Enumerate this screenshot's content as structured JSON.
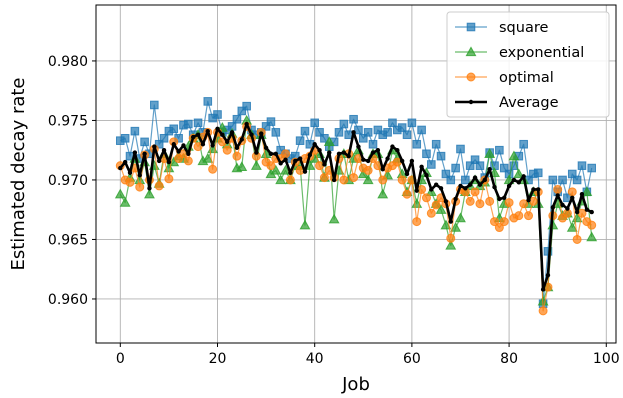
{
  "chart_data": {
    "type": "line",
    "title": "",
    "xlabel": "Job",
    "ylabel": "Estimated decay rate",
    "xlim": [
      -5,
      102
    ],
    "ylim": [
      0.9563,
      0.9847
    ],
    "xticks": [
      0,
      20,
      40,
      60,
      80,
      100
    ],
    "yticks": [
      0.96,
      0.965,
      0.97,
      0.975,
      0.98
    ],
    "ytick_labels": [
      "0.960",
      "0.965",
      "0.970",
      "0.975",
      "0.980"
    ],
    "grid": true,
    "legend_position": "top-right",
    "x": [
      0,
      1,
      2,
      3,
      4,
      5,
      6,
      7,
      8,
      9,
      10,
      11,
      12,
      13,
      14,
      15,
      16,
      17,
      18,
      19,
      20,
      21,
      22,
      23,
      24,
      25,
      26,
      27,
      28,
      29,
      30,
      31,
      32,
      33,
      34,
      35,
      36,
      37,
      38,
      39,
      40,
      41,
      42,
      43,
      44,
      45,
      46,
      47,
      48,
      49,
      50,
      51,
      52,
      53,
      54,
      55,
      56,
      57,
      58,
      59,
      60,
      61,
      62,
      63,
      64,
      65,
      66,
      67,
      68,
      69,
      70,
      71,
      72,
      73,
      74,
      75,
      76,
      77,
      78,
      79,
      80,
      81,
      82,
      83,
      84,
      85,
      86,
      87,
      88,
      89,
      90,
      91,
      92,
      93,
      94,
      95,
      96,
      97
    ],
    "series": [
      {
        "name": "square",
        "color": "#1f77b4",
        "marker": "square",
        "values": [
          0.9733,
          0.9735,
          0.972,
          0.9741,
          0.9718,
          0.9732,
          0.9722,
          0.9763,
          0.973,
          0.9735,
          0.9741,
          0.9743,
          0.9735,
          0.9746,
          0.9747,
          0.9738,
          0.9748,
          0.974,
          0.9766,
          0.9752,
          0.9755,
          0.974,
          0.9742,
          0.9745,
          0.9751,
          0.9758,
          0.9762,
          0.9742,
          0.9738,
          0.974,
          0.9745,
          0.9749,
          0.974,
          0.9725,
          0.9722,
          0.9718,
          0.972,
          0.9733,
          0.9741,
          0.973,
          0.9748,
          0.974,
          0.9735,
          0.9728,
          0.9732,
          0.974,
          0.9747,
          0.9738,
          0.9751,
          0.9742,
          0.9735,
          0.974,
          0.973,
          0.9742,
          0.9738,
          0.974,
          0.9748,
          0.9742,
          0.9744,
          0.9738,
          0.9748,
          0.973,
          0.9742,
          0.9722,
          0.9713,
          0.973,
          0.972,
          0.9705,
          0.97,
          0.971,
          0.9726,
          0.97,
          0.9712,
          0.9717,
          0.9712,
          0.9702,
          0.9723,
          0.9712,
          0.9725,
          0.971,
          0.9705,
          0.9712,
          0.972,
          0.973,
          0.97,
          0.9705,
          0.9706,
          0.9596,
          0.964,
          0.97,
          0.969,
          0.97,
          0.9685,
          0.9705,
          0.97,
          0.9712,
          0.969,
          0.971
        ]
      },
      {
        "name": "exponential",
        "color": "#2ca02c",
        "marker": "triangle",
        "values": [
          0.9688,
          0.9681,
          0.9702,
          0.9718,
          0.97,
          0.9715,
          0.9688,
          0.9712,
          0.9697,
          0.9722,
          0.971,
          0.9715,
          0.972,
          0.9718,
          0.9728,
          0.9735,
          0.9738,
          0.9716,
          0.9718,
          0.9726,
          0.9735,
          0.9744,
          0.973,
          0.9739,
          0.971,
          0.9711,
          0.975,
          0.9738,
          0.9712,
          0.9738,
          0.9722,
          0.9705,
          0.9708,
          0.97,
          0.9708,
          0.97,
          0.9712,
          0.9712,
          0.9662,
          0.9712,
          0.9718,
          0.9722,
          0.9702,
          0.9732,
          0.9667,
          0.9708,
          0.9722,
          0.97,
          0.9718,
          0.9725,
          0.9705,
          0.97,
          0.9722,
          0.9722,
          0.9688,
          0.9704,
          0.9725,
          0.9718,
          0.9705,
          0.969,
          0.97,
          0.968,
          0.97,
          0.9706,
          0.969,
          0.968,
          0.9675,
          0.9662,
          0.9645,
          0.966,
          0.9668,
          0.969,
          0.9695,
          0.97,
          0.9695,
          0.9698,
          0.9722,
          0.9706,
          0.9668,
          0.968,
          0.97,
          0.972,
          0.9705,
          0.97,
          0.968,
          0.969,
          0.968,
          0.9598,
          0.961,
          0.9662,
          0.968,
          0.967,
          0.9672,
          0.966,
          0.9668,
          0.9682,
          0.969,
          0.9652
        ]
      },
      {
        "name": "optimal",
        "color": "#ff7f0e",
        "marker": "circle",
        "values": [
          0.9712,
          0.97,
          0.9698,
          0.971,
          0.9694,
          0.9721,
          0.97,
          0.9726,
          0.9695,
          0.9718,
          0.9701,
          0.9732,
          0.9718,
          0.9722,
          0.9716,
          0.9735,
          0.9728,
          0.9736,
          0.974,
          0.9709,
          0.974,
          0.9732,
          0.9725,
          0.9735,
          0.972,
          0.9733,
          0.9745,
          0.9735,
          0.972,
          0.974,
          0.9715,
          0.9712,
          0.9718,
          0.9718,
          0.9722,
          0.97,
          0.9715,
          0.9708,
          0.9718,
          0.972,
          0.9725,
          0.9712,
          0.9702,
          0.9708,
          0.9702,
          0.9718,
          0.97,
          0.9722,
          0.9702,
          0.9718,
          0.971,
          0.9708,
          0.9718,
          0.9712,
          0.97,
          0.971,
          0.9712,
          0.9715,
          0.97,
          0.9688,
          0.97,
          0.9665,
          0.9692,
          0.9685,
          0.9672,
          0.9679,
          0.9685,
          0.968,
          0.9651,
          0.9682,
          0.9692,
          0.969,
          0.9682,
          0.969,
          0.968,
          0.97,
          0.9682,
          0.9665,
          0.966,
          0.9665,
          0.9681,
          0.9668,
          0.967,
          0.968,
          0.967,
          0.9682,
          0.969,
          0.959,
          0.961,
          0.967,
          0.9692,
          0.9668,
          0.9672,
          0.969,
          0.965,
          0.9672,
          0.9665,
          0.9662
        ]
      },
      {
        "name": "Average",
        "color": "#000000",
        "marker": "dot",
        "values": [
          0.971,
          0.9715,
          0.9706,
          0.9723,
          0.9704,
          0.9722,
          0.9693,
          0.9728,
          0.9716,
          0.9725,
          0.9715,
          0.973,
          0.9724,
          0.9729,
          0.9722,
          0.9736,
          0.9738,
          0.973,
          0.9741,
          0.9729,
          0.9743,
          0.9738,
          0.9732,
          0.974,
          0.9727,
          0.9734,
          0.9747,
          0.9738,
          0.9723,
          0.9739,
          0.9727,
          0.9722,
          0.9722,
          0.9714,
          0.9717,
          0.9706,
          0.9716,
          0.9718,
          0.9707,
          0.9721,
          0.973,
          0.9725,
          0.9713,
          0.9723,
          0.97,
          0.9722,
          0.9723,
          0.972,
          0.974,
          0.9728,
          0.9717,
          0.9716,
          0.9723,
          0.9725,
          0.9709,
          0.9718,
          0.9728,
          0.9725,
          0.9716,
          0.9705,
          0.9716,
          0.9691,
          0.9711,
          0.9704,
          0.9692,
          0.9696,
          0.9693,
          0.9682,
          0.9665,
          0.9684,
          0.9695,
          0.9693,
          0.9696,
          0.9702,
          0.9696,
          0.97,
          0.9709,
          0.9694,
          0.9684,
          0.9685,
          0.9695,
          0.97,
          0.9698,
          0.9703,
          0.9683,
          0.9692,
          0.9692,
          0.9608,
          0.962,
          0.9677,
          0.9687,
          0.9679,
          0.9676,
          0.9685,
          0.9673,
          0.9688,
          0.9675,
          0.9673
        ]
      }
    ]
  }
}
